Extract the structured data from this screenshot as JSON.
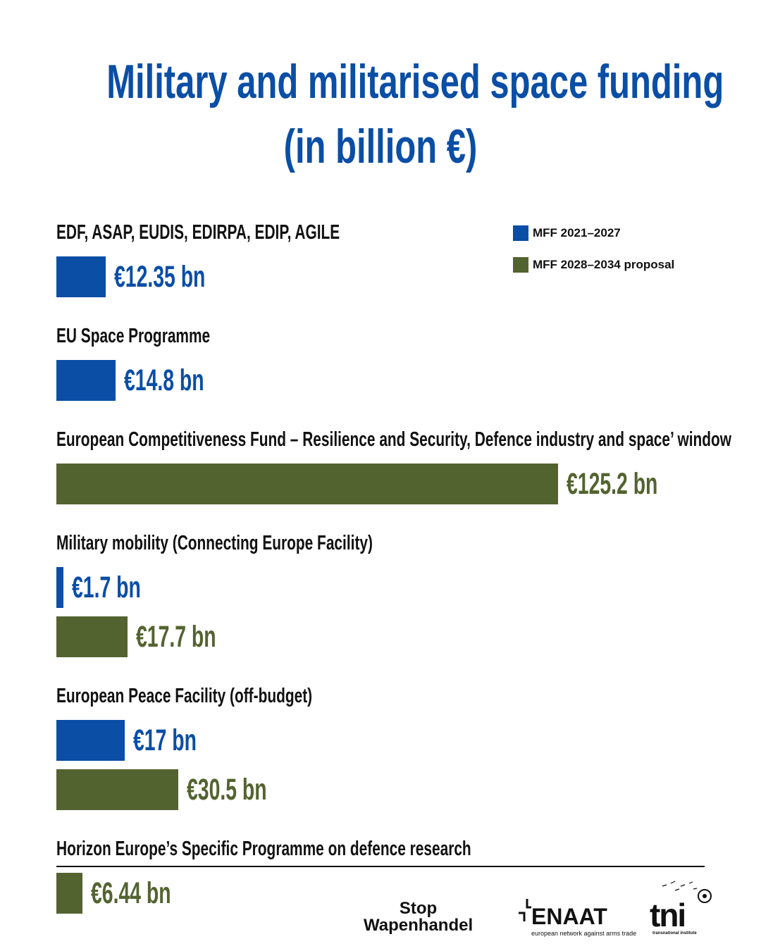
{
  "colors": {
    "mff_current": "#0a4ea6",
    "mff_proposal": "#536330",
    "text": "#111111",
    "background": "#ffffff"
  },
  "title_lines": [
    "Military and militarised space funding",
    "(in billion €)"
  ],
  "legend": [
    {
      "label": "MFF 2021–2027",
      "series": "mff_current"
    },
    {
      "label": "MFF 2028–2034 proposal",
      "series": "mff_proposal"
    }
  ],
  "chart_data": {
    "type": "bar",
    "orientation": "horizontal",
    "title": "Military and militarised space funding (in billion €)",
    "unit": "billion €",
    "legend_position": "top-right",
    "grid": false,
    "series": [
      {
        "name": "MFF 2021–2027",
        "key": "mff_current"
      },
      {
        "name": "MFF 2028–2034 proposal",
        "key": "mff_proposal"
      }
    ],
    "groups": [
      {
        "label": "EDF, ASAP, EUDIS, EDIRPA, EDIP, AGILE",
        "bars": [
          {
            "series": "mff_current",
            "value": 12.35,
            "label": "€12.35 bn"
          }
        ]
      },
      {
        "label": "EU Space Programme",
        "bars": [
          {
            "series": "mff_current",
            "value": 14.8,
            "label": "€14.8 bn"
          }
        ]
      },
      {
        "label": "European Competitiveness Fund – Resilience and Security, Defence industry and space’ window",
        "bars": [
          {
            "series": "mff_proposal",
            "value": 125.2,
            "label": "€125.2 bn"
          }
        ]
      },
      {
        "label": "Military mobility (Connecting Europe Facility)",
        "bars": [
          {
            "series": "mff_current",
            "value": 1.7,
            "label": "€1.7 bn"
          },
          {
            "series": "mff_proposal",
            "value": 17.7,
            "label": "€17.7 bn"
          }
        ]
      },
      {
        "label": "European Peace Facility (off-budget)",
        "bars": [
          {
            "series": "mff_current",
            "value": 17,
            "label": "€17 bn"
          },
          {
            "series": "mff_proposal",
            "value": 30.5,
            "label": "€30.5 bn"
          }
        ]
      },
      {
        "label": "Horizon Europe’s Specific Programme on defence research",
        "bars": [
          {
            "series": "mff_proposal",
            "value": 6.44,
            "label": "€6.44 bn"
          }
        ]
      }
    ]
  },
  "footer": {
    "stop_wapenhandel": [
      "Stop",
      "Wapenhandel"
    ],
    "enaat": {
      "name": "ENAAT",
      "tagline": "european network against arms trade"
    },
    "tni": {
      "name": "tni",
      "tagline": "transnational institute"
    }
  }
}
